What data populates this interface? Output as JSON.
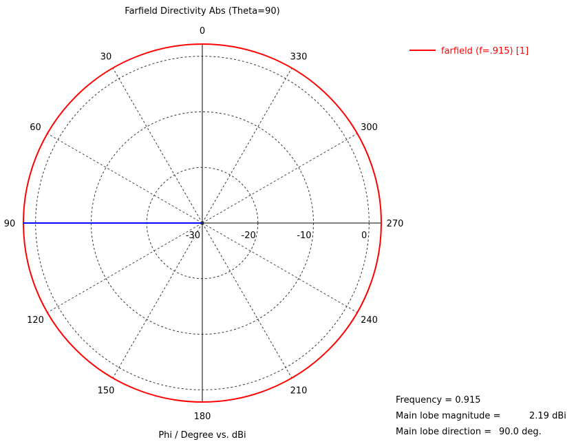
{
  "chart_data": {
    "type": "polar",
    "title": "Farfield Directivity Abs (Theta=90)",
    "xlabel": "Phi / Degree vs. dBi",
    "angle_labels": [
      "0",
      "30",
      "60",
      "90",
      "120",
      "150",
      "180",
      "210",
      "240",
      "270",
      "300",
      "330"
    ],
    "angle_direction": "counterclockwise",
    "zero_location": "top",
    "radial_labels": [
      "-30",
      "-20",
      "-10",
      "0"
    ],
    "rlim": [
      -30,
      2.19
    ],
    "grid": true,
    "series": [
      {
        "name": "farfield (f=.915) [1]",
        "color": "#ff0000",
        "constant_value": 2.19,
        "phi_range": [
          0,
          360
        ]
      }
    ],
    "main_lobe_marker": {
      "phi": 90,
      "color": "#0000ff"
    },
    "legend_position": "top-right"
  },
  "info": {
    "frequency_label": "Frequency = 0.915",
    "magnitude_label": "Main lobe magnitude =",
    "magnitude_value": "2.19 dBi",
    "direction_label": "Main lobe direction =",
    "direction_value": "90.0 deg."
  }
}
